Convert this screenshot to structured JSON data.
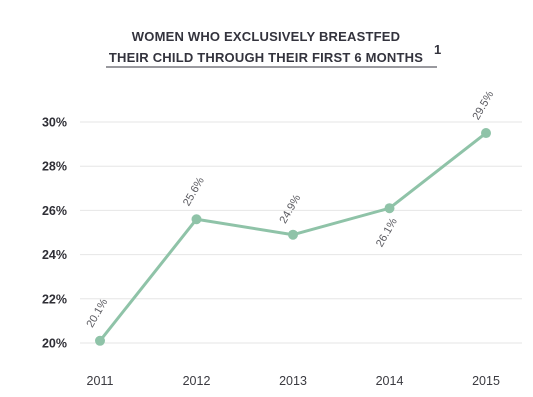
{
  "chart_data": {
    "type": "line",
    "title_lines": [
      "WOMEN WHO EXCLUSIVELY BREASTFED",
      "THEIR CHILD THROUGH THEIR FIRST 6 MONTHS"
    ],
    "title_superscript": "1",
    "categories": [
      "2011",
      "2012",
      "2013",
      "2014",
      "2015"
    ],
    "values": [
      20.1,
      25.6,
      24.9,
      26.1,
      29.5
    ],
    "data_labels": [
      "20.1%",
      "25.6%",
      "24.9%",
      "26.1%",
      "29.5%"
    ],
    "y_ticks": [
      20,
      22,
      24,
      26,
      28,
      30
    ],
    "y_tick_labels": [
      "20%",
      "22%",
      "24%",
      "26%",
      "28%",
      "30%"
    ],
    "ylim": [
      20,
      30
    ],
    "grid": true,
    "line_color": "#8fc3a8",
    "marker_color": "#8fc3a8"
  }
}
